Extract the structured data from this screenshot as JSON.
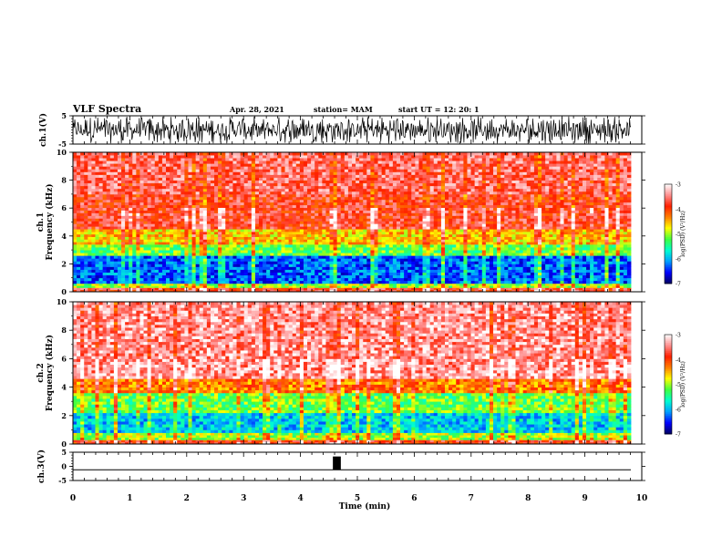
{
  "header": {
    "title": "VLF Spectra",
    "date": "Apr. 28, 2021",
    "station": "station= MAM",
    "start_ut": "start  UT  =   12: 20: 1"
  },
  "colors": {
    "spectrum_scale": [
      "#000060",
      "#0000ff",
      "#00a0ff",
      "#00ffd0",
      "#40ff40",
      "#ffff00",
      "#ff8000",
      "#ff2000",
      "#ff9090",
      "#ffffff"
    ]
  },
  "chart_data": [
    {
      "type": "line",
      "name": "ch1-waveform",
      "ylabel": "ch.1(V)",
      "ylim": [
        -5,
        5
      ],
      "y_ticks": [
        "5",
        "-5"
      ],
      "xlim": [
        0,
        9.83
      ],
      "description_level": "broadband noise saturating roughly -4 to 4 V throughout"
    },
    {
      "type": "heatmap",
      "name": "ch1-spectrogram",
      "ylabel_top": "ch.1",
      "ylabel": "Frequency (kHz)",
      "ylim": [
        0,
        10
      ],
      "y_ticks": [
        "0",
        "2",
        "4",
        "6",
        "8",
        "10"
      ],
      "xlim": [
        0,
        9.83
      ],
      "colorbar": {
        "label": "log(PSD) (V²/Hz)",
        "ticks": [
          "-3",
          "-4",
          "-5",
          "-6",
          "-7"
        ],
        "range": [
          -7,
          -3
        ]
      },
      "bands": [
        {
          "f_min": 0.0,
          "f_max": 0.3,
          "log_psd": -3.8
        },
        {
          "f_min": 0.3,
          "f_max": 0.6,
          "log_psd": -5.0
        },
        {
          "f_min": 0.6,
          "f_max": 2.6,
          "log_psd": -6.3
        },
        {
          "f_min": 2.6,
          "f_max": 3.4,
          "log_psd": -5.2
        },
        {
          "f_min": 3.4,
          "f_max": 4.5,
          "log_psd": -4.6
        },
        {
          "f_min": 4.5,
          "f_max": 7.0,
          "log_psd": -3.8
        },
        {
          "f_min": 7.0,
          "f_max": 10.0,
          "log_psd": -3.6
        }
      ]
    },
    {
      "type": "heatmap",
      "name": "ch2-spectrogram",
      "ylabel_top": "ch.2",
      "ylabel": "Frequency (kHz)",
      "ylim": [
        0,
        10
      ],
      "y_ticks": [
        "0",
        "2",
        "4",
        "6",
        "8",
        "10"
      ],
      "xlim": [
        0,
        9.83
      ],
      "colorbar": {
        "label": "log(PSD) (V²/Hz)",
        "ticks": [
          "-3",
          "-4",
          "-5",
          "-6",
          "-7"
        ],
        "range": [
          -7,
          -3
        ]
      },
      "bands": [
        {
          "f_min": 0.0,
          "f_max": 0.3,
          "log_psd": -3.9
        },
        {
          "f_min": 0.3,
          "f_max": 0.8,
          "log_psd": -5.0
        },
        {
          "f_min": 0.8,
          "f_max": 2.2,
          "log_psd": -5.9
        },
        {
          "f_min": 2.2,
          "f_max": 3.6,
          "log_psd": -5.2
        },
        {
          "f_min": 3.6,
          "f_max": 4.6,
          "log_psd": -4.3
        },
        {
          "f_min": 4.6,
          "f_max": 10.0,
          "log_psd": -3.4
        }
      ]
    },
    {
      "type": "line",
      "name": "ch3-trigger",
      "ylabel": "ch.3(V)",
      "ylim": [
        -5,
        5
      ],
      "y_ticks": [
        "5",
        "0",
        "-5"
      ],
      "xlim": [
        0,
        9.83
      ],
      "baseline_v": -1.2,
      "pulse": {
        "t_start": 4.58,
        "t_end": 4.72,
        "v_high": 3.5
      }
    }
  ],
  "x_axis": {
    "label": "Time  (min)",
    "range": [
      0,
      10
    ],
    "ticks": [
      "0",
      "1",
      "2",
      "3",
      "4",
      "5",
      "6",
      "7",
      "8",
      "9",
      "10"
    ]
  }
}
